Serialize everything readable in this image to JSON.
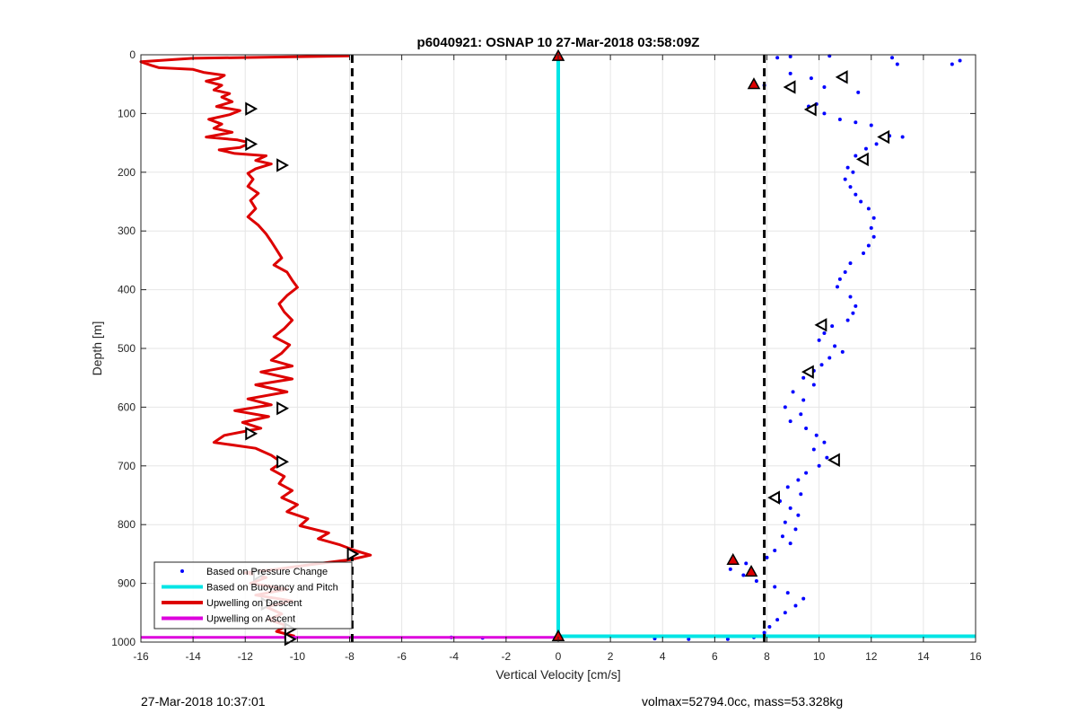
{
  "chart_data": {
    "type": "scatter",
    "title": "p6040921: OSNAP 10 27-Mar-2018 03:58:09Z",
    "xlabel": "Vertical Velocity [cm/s]",
    "ylabel": "Depth [m]",
    "xlim": [
      -16,
      16
    ],
    "ylim": [
      0,
      1000
    ],
    "y_reversed": true,
    "grid": true,
    "x_ticks": [
      -16,
      -14,
      -12,
      -10,
      -8,
      -6,
      -4,
      -2,
      0,
      2,
      4,
      6,
      8,
      10,
      12,
      14,
      16
    ],
    "y_ticks": [
      0,
      100,
      200,
      300,
      400,
      500,
      600,
      700,
      800,
      900,
      1000
    ],
    "legend_position": "bottom-left",
    "series": [
      {
        "name": "Based on Pressure Change",
        "style": "dots",
        "color": "#0000ff",
        "points": [
          [
            8.4,
            5
          ],
          [
            8.9,
            3
          ],
          [
            10.4,
            2
          ],
          [
            12.8,
            5
          ],
          [
            15.4,
            10
          ],
          [
            15.1,
            16
          ],
          [
            13.0,
            16
          ],
          [
            7.5,
            55
          ],
          [
            7.9,
            52
          ],
          [
            8.9,
            32
          ],
          [
            9.7,
            40
          ],
          [
            11.0,
            44
          ],
          [
            11.5,
            64
          ],
          [
            10.2,
            55
          ],
          [
            9.6,
            88
          ],
          [
            9.9,
            84
          ],
          [
            10.2,
            100
          ],
          [
            10.8,
            110
          ],
          [
            11.4,
            115
          ],
          [
            12.0,
            120
          ],
          [
            12.7,
            138
          ],
          [
            13.2,
            140
          ],
          [
            12.2,
            152
          ],
          [
            11.8,
            160
          ],
          [
            11.4,
            172
          ],
          [
            11.6,
            178
          ],
          [
            11.1,
            192
          ],
          [
            11.3,
            200
          ],
          [
            11.0,
            212
          ],
          [
            11.2,
            225
          ],
          [
            11.4,
            238
          ],
          [
            11.6,
            250
          ],
          [
            11.9,
            262
          ],
          [
            12.1,
            278
          ],
          [
            12.0,
            295
          ],
          [
            12.1,
            310
          ],
          [
            11.9,
            325
          ],
          [
            11.7,
            338
          ],
          [
            11.2,
            355
          ],
          [
            11.0,
            370
          ],
          [
            10.8,
            382
          ],
          [
            10.7,
            395
          ],
          [
            11.2,
            412
          ],
          [
            11.4,
            428
          ],
          [
            11.3,
            440
          ],
          [
            11.1,
            452
          ],
          [
            10.5,
            462
          ],
          [
            10.2,
            474
          ],
          [
            10.0,
            486
          ],
          [
            10.6,
            496
          ],
          [
            10.9,
            506
          ],
          [
            10.4,
            516
          ],
          [
            10.1,
            528
          ],
          [
            9.8,
            538
          ],
          [
            9.4,
            550
          ],
          [
            9.8,
            562
          ],
          [
            9.0,
            574
          ],
          [
            9.4,
            588
          ],
          [
            8.7,
            600
          ],
          [
            9.3,
            612
          ],
          [
            8.9,
            624
          ],
          [
            9.5,
            636
          ],
          [
            9.9,
            648
          ],
          [
            10.2,
            660
          ],
          [
            9.8,
            672
          ],
          [
            10.3,
            686
          ],
          [
            10.0,
            700
          ],
          [
            9.5,
            712
          ],
          [
            9.2,
            724
          ],
          [
            8.8,
            736
          ],
          [
            9.3,
            748
          ],
          [
            8.5,
            760
          ],
          [
            8.9,
            772
          ],
          [
            9.2,
            784
          ],
          [
            8.7,
            796
          ],
          [
            9.1,
            808
          ],
          [
            8.6,
            820
          ],
          [
            8.9,
            832
          ],
          [
            8.3,
            844
          ],
          [
            8.0,
            856
          ],
          [
            7.2,
            866
          ],
          [
            6.6,
            876
          ],
          [
            7.1,
            886
          ],
          [
            7.6,
            896
          ],
          [
            8.3,
            906
          ],
          [
            8.8,
            916
          ],
          [
            9.4,
            926
          ],
          [
            9.1,
            938
          ],
          [
            8.7,
            950
          ],
          [
            8.4,
            962
          ],
          [
            8.1,
            974
          ],
          [
            7.9,
            984
          ],
          [
            7.5,
            992
          ],
          [
            6.5,
            995
          ],
          [
            5.0,
            995
          ],
          [
            3.7,
            994
          ],
          [
            -2.9,
            993
          ],
          [
            -4.1,
            992
          ]
        ]
      },
      {
        "name": "Based on Buoyancy and Pitch",
        "style": "line",
        "color": "#00e5e5",
        "points": [
          [
            0,
            2
          ],
          [
            0,
            990
          ],
          [
            16,
            990
          ]
        ]
      },
      {
        "name": "Upwelling on Descent",
        "style": "line",
        "color": "#dd0000",
        "points": [
          [
            -8.0,
            2
          ],
          [
            -14.0,
            6
          ],
          [
            -16.0,
            12
          ],
          [
            -15.6,
            18
          ],
          [
            -15.3,
            22
          ],
          [
            -14.0,
            25
          ],
          [
            -13.6,
            30
          ],
          [
            -12.8,
            35
          ],
          [
            -13.0,
            40
          ],
          [
            -13.5,
            45
          ],
          [
            -12.9,
            52
          ],
          [
            -13.2,
            60
          ],
          [
            -12.6,
            66
          ],
          [
            -12.9,
            72
          ],
          [
            -12.5,
            80
          ],
          [
            -13.1,
            88
          ],
          [
            -12.2,
            95
          ],
          [
            -12.6,
            102
          ],
          [
            -13.4,
            110
          ],
          [
            -12.9,
            118
          ],
          [
            -13.2,
            125
          ],
          [
            -12.5,
            132
          ],
          [
            -13.5,
            140
          ],
          [
            -12.3,
            145
          ],
          [
            -11.8,
            150
          ],
          [
            -12.2,
            158
          ],
          [
            -13.0,
            162
          ],
          [
            -12.4,
            168
          ],
          [
            -11.2,
            172
          ],
          [
            -11.6,
            180
          ],
          [
            -11.0,
            186
          ],
          [
            -11.6,
            194
          ],
          [
            -11.9,
            202
          ],
          [
            -11.7,
            212
          ],
          [
            -11.9,
            224
          ],
          [
            -11.5,
            236
          ],
          [
            -11.8,
            248
          ],
          [
            -11.6,
            262
          ],
          [
            -11.9,
            276
          ],
          [
            -11.5,
            290
          ],
          [
            -11.2,
            305
          ],
          [
            -11.0,
            318
          ],
          [
            -10.8,
            332
          ],
          [
            -10.6,
            346
          ],
          [
            -10.9,
            358
          ],
          [
            -10.4,
            370
          ],
          [
            -10.2,
            384
          ],
          [
            -10.0,
            396
          ],
          [
            -10.4,
            410
          ],
          [
            -10.7,
            424
          ],
          [
            -10.5,
            438
          ],
          [
            -10.2,
            452
          ],
          [
            -10.5,
            466
          ],
          [
            -10.9,
            480
          ],
          [
            -10.3,
            494
          ],
          [
            -10.6,
            508
          ],
          [
            -11.0,
            520
          ],
          [
            -10.2,
            530
          ],
          [
            -11.4,
            540
          ],
          [
            -10.2,
            552
          ],
          [
            -11.6,
            562
          ],
          [
            -10.4,
            574
          ],
          [
            -11.9,
            586
          ],
          [
            -11.0,
            596
          ],
          [
            -12.4,
            606
          ],
          [
            -11.1,
            616
          ],
          [
            -12.1,
            626
          ],
          [
            -11.4,
            636
          ],
          [
            -12.8,
            648
          ],
          [
            -13.2,
            660
          ],
          [
            -11.6,
            670
          ],
          [
            -11.0,
            682
          ],
          [
            -10.6,
            694
          ],
          [
            -11.0,
            706
          ],
          [
            -10.5,
            718
          ],
          [
            -10.7,
            730
          ],
          [
            -10.2,
            742
          ],
          [
            -10.6,
            754
          ],
          [
            -10.0,
            766
          ],
          [
            -10.4,
            778
          ],
          [
            -9.6,
            790
          ],
          [
            -9.9,
            802
          ],
          [
            -8.8,
            814
          ],
          [
            -9.2,
            824
          ],
          [
            -8.4,
            834
          ],
          [
            -7.8,
            844
          ],
          [
            -7.2,
            852
          ],
          [
            -8.0,
            860
          ],
          [
            -9.5,
            868
          ],
          [
            -10.8,
            876
          ],
          [
            -12.0,
            882
          ],
          [
            -11.2,
            890
          ],
          [
            -11.8,
            900
          ],
          [
            -10.4,
            910
          ],
          [
            -11.6,
            920
          ],
          [
            -10.2,
            930
          ],
          [
            -11.2,
            940
          ],
          [
            -10.6,
            952
          ],
          [
            -11.1,
            962
          ],
          [
            -10.4,
            972
          ],
          [
            -10.8,
            982
          ],
          [
            -10.1,
            990
          ]
        ]
      },
      {
        "name": "Upwelling on Ascent",
        "style": "line",
        "color": "#dd00dd",
        "points": [
          [
            -16,
            992
          ],
          [
            0,
            992
          ]
        ]
      }
    ],
    "reference_lines": [
      {
        "x": -7.9,
        "style": "dashed",
        "color": "#000000"
      },
      {
        "x": 7.9,
        "style": "dashed",
        "color": "#000000"
      }
    ],
    "markers": {
      "filled_triangles": [
        [
          0,
          2
        ],
        [
          7.5,
          50
        ],
        [
          6.7,
          860
        ],
        [
          7.4,
          880
        ],
        [
          0,
          990
        ]
      ],
      "open_triangles": [
        [
          10.9,
          38
        ],
        [
          8.9,
          55
        ],
        [
          9.7,
          93
        ],
        [
          12.5,
          140
        ],
        [
          11.7,
          178
        ],
        [
          10.1,
          460
        ],
        [
          9.6,
          540
        ],
        [
          10.6,
          690
        ],
        [
          8.3,
          754
        ],
        [
          -11.8,
          92
        ],
        [
          -11.8,
          152
        ],
        [
          -10.6,
          188
        ],
        [
          -10.6,
          602
        ],
        [
          -11.8,
          645
        ],
        [
          -10.6,
          693
        ],
        [
          -7.9,
          850
        ],
        [
          -11.5,
          885
        ],
        [
          -11.2,
          935
        ],
        [
          -10.3,
          978
        ],
        [
          -10.3,
          995
        ]
      ]
    }
  },
  "footer": {
    "left": "27-Mar-2018 10:37:01",
    "right": "volmax=52794.0cc, mass=53.328kg"
  }
}
